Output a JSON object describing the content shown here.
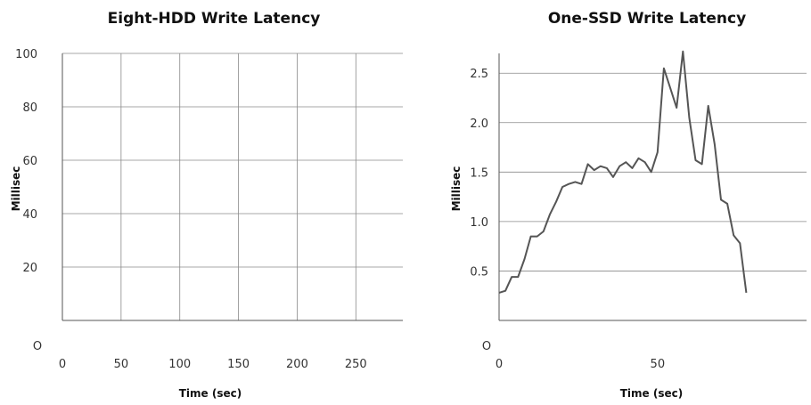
{
  "chart_data": [
    {
      "type": "line",
      "title": "Eight-HDD Write Latency",
      "xlabel": "Time (sec)",
      "ylabel": "Millisec",
      "xlim": [
        0,
        290
      ],
      "ylim": [
        0,
        100
      ],
      "x_ticks": [
        "0",
        "50",
        "100",
        "150",
        "200",
        "250"
      ],
      "y_ticks": [
        "O",
        "20",
        "40",
        "60",
        "80",
        "100"
      ],
      "grid": true,
      "series": []
    },
    {
      "type": "line",
      "title": "One-SSD Write Latency",
      "xlabel": "Time (sec)",
      "ylabel": "Millisec",
      "xlim": [
        0,
        97
      ],
      "ylim": [
        0,
        2.7
      ],
      "x_ticks": [
        "0",
        "50"
      ],
      "y_ticks": [
        "O",
        "0.5",
        "1.0",
        "1.5",
        "2.0",
        "2.5"
      ],
      "grid": true,
      "series": [
        {
          "x": [
            0,
            2,
            4,
            6,
            8,
            10,
            12,
            14,
            16,
            18,
            20,
            22,
            24,
            26,
            28,
            30,
            32,
            34,
            36,
            38,
            40,
            42,
            44,
            46,
            48,
            50,
            52,
            54,
            56,
            58,
            60,
            62,
            64,
            66,
            68,
            70,
            72,
            74,
            76,
            78
          ],
          "y": [
            0.28,
            0.3,
            0.44,
            0.44,
            0.62,
            0.85,
            0.85,
            0.9,
            1.07,
            1.2,
            1.35,
            1.38,
            1.4,
            1.38,
            1.58,
            1.52,
            1.56,
            1.54,
            1.45,
            1.56,
            1.6,
            1.54,
            1.64,
            1.6,
            1.5,
            1.7,
            2.55,
            2.35,
            2.15,
            2.72,
            2.05,
            1.62,
            1.58,
            2.17,
            1.78,
            1.22,
            1.18,
            0.86,
            0.78,
            0.28
          ]
        }
      ]
    }
  ]
}
